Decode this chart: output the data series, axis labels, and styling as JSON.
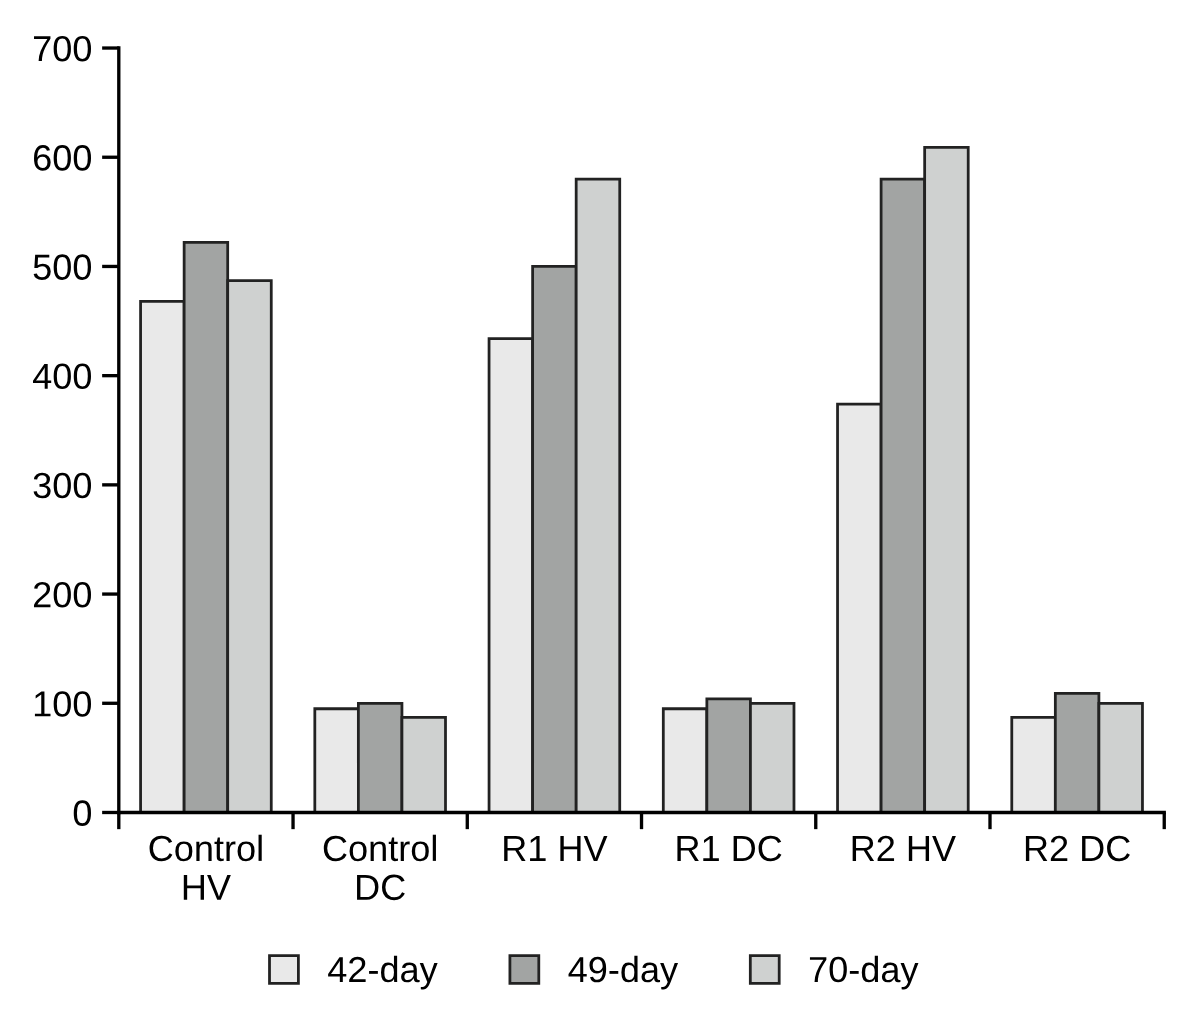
{
  "chart_data": {
    "type": "bar",
    "categories": [
      "Control\nHV",
      "Control\nDC",
      "R1 HV",
      "R1 DC",
      "R2 HV",
      "R2 DC"
    ],
    "series": [
      {
        "name": "42-day",
        "color": "#e9e9e9",
        "values": [
          468,
          95,
          434,
          95,
          374,
          87
        ]
      },
      {
        "name": "49-day",
        "color": "#a2a4a3",
        "values": [
          522,
          100,
          500,
          104,
          580,
          109
        ]
      },
      {
        "name": "70-day",
        "color": "#cfd1d0",
        "values": [
          487,
          87,
          580,
          100,
          609,
          100
        ]
      }
    ],
    "ylim": [
      0,
      700
    ],
    "yticks": [
      0,
      100,
      200,
      300,
      400,
      500,
      600,
      700
    ],
    "grid": false,
    "legend": "bottom"
  }
}
